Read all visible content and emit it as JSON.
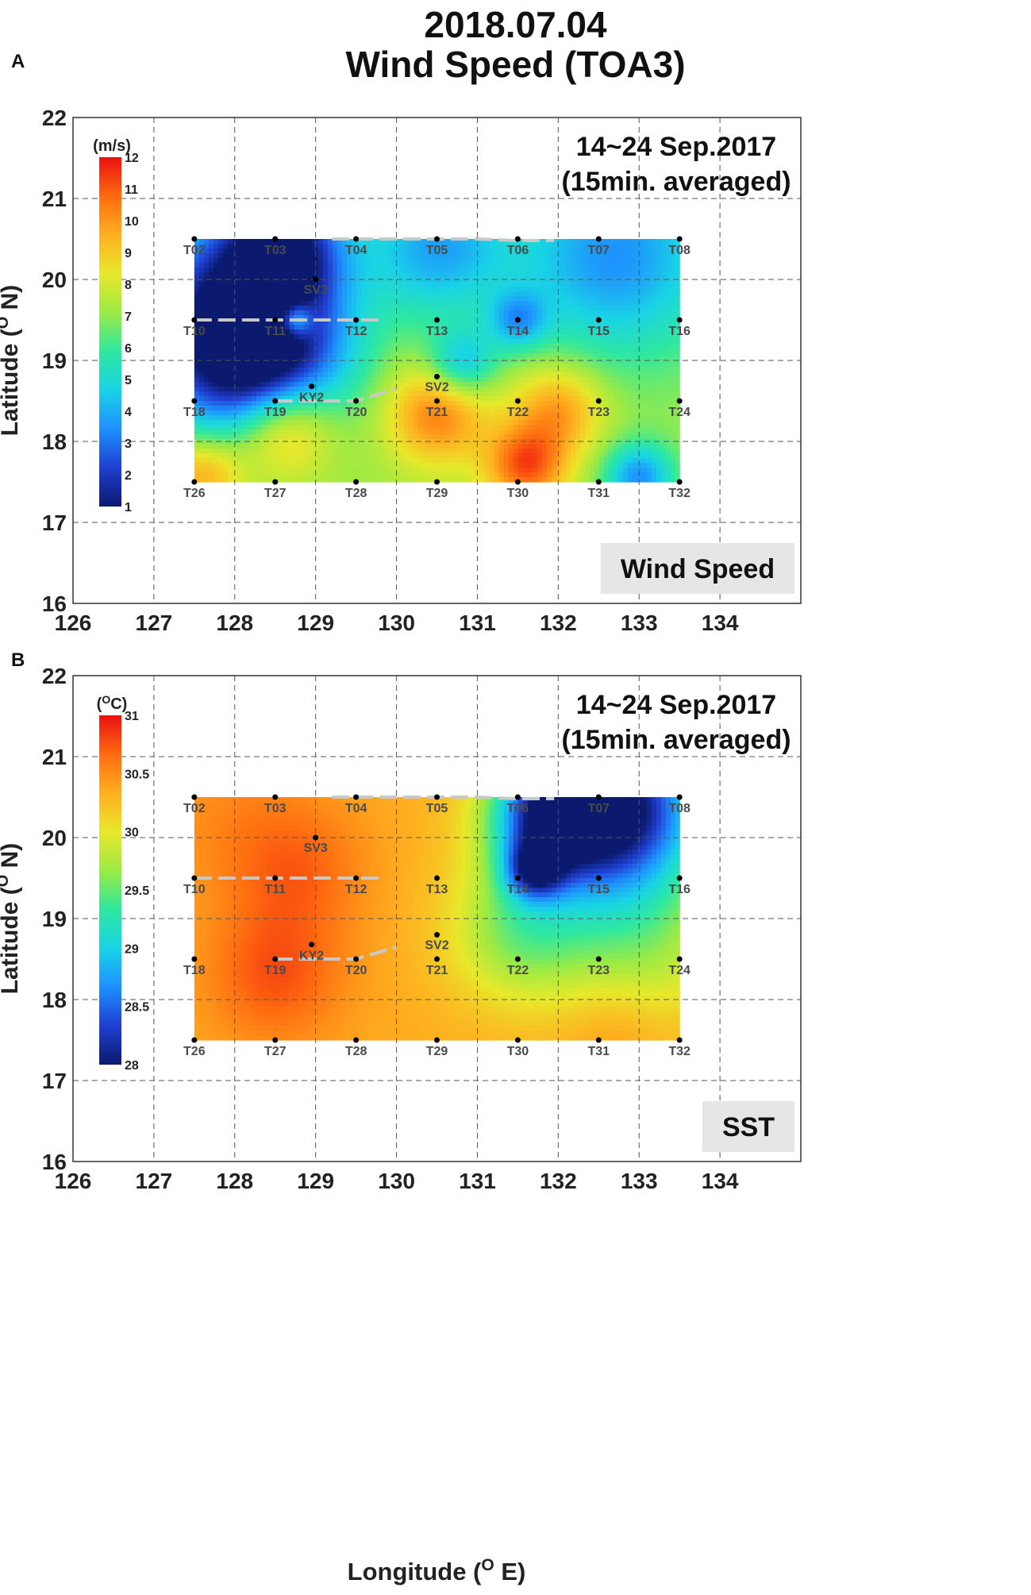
{
  "figure": {
    "title_line1": "2018.07.04",
    "title_line2": "Wind Speed (TOA3)",
    "x_axis_label": "Longitude (",
    "x_axis_sup": "O",
    "x_axis_unit": " E)"
  },
  "chart_data": [
    {
      "type": "heatmap",
      "panel": "A",
      "xlabel": "",
      "ylabel": "Latitude (O N)",
      "xlim": [
        126,
        135
      ],
      "ylim": [
        16,
        22
      ],
      "xticks": [
        126,
        127,
        128,
        129,
        130,
        131,
        132,
        133,
        134
      ],
      "yticks": [
        16,
        17,
        18,
        19,
        20,
        21,
        22
      ],
      "grid": true,
      "annotation": [
        "14~24 Sep.2017",
        "(15min. averaged)"
      ],
      "field_label": "Wind Speed",
      "colorbar": {
        "title": "(m/s)",
        "min": 1,
        "max": 12,
        "ticks": [
          1,
          2,
          3,
          4,
          5,
          6,
          7,
          8,
          9,
          10,
          11,
          12
        ],
        "tick_labels": [
          "1",
          "2",
          "3",
          "4",
          "5",
          "6",
          "7",
          "8",
          "9",
          "10",
          "11",
          "12"
        ],
        "colors": [
          "#0b1a6e",
          "#1f3fd0",
          "#1e90ff",
          "#19d3e6",
          "#2ee8a0",
          "#9bea45",
          "#e8e82a",
          "#ffb020",
          "#ff6a10",
          "#e81010"
        ]
      },
      "field_extent": {
        "lon": [
          127.5,
          133.5
        ],
        "lat": [
          17.5,
          20.5
        ]
      },
      "base_value": 7.2,
      "features": [
        {
          "lon": 128.0,
          "lat": 19.6,
          "value": 2.0,
          "spread": 0.9
        },
        {
          "lon": 128.3,
          "lat": 19.0,
          "value": 2.2,
          "spread": 0.7
        },
        {
          "lon": 128.6,
          "lat": 20.4,
          "value": 2.4,
          "spread": 0.5
        },
        {
          "lon": 130.5,
          "lat": 20.4,
          "value": 4.0,
          "spread": 0.6
        },
        {
          "lon": 132.7,
          "lat": 20.3,
          "value": 3.5,
          "spread": 0.9
        },
        {
          "lon": 130.8,
          "lat": 18.95,
          "value": 4.2,
          "spread": 0.3
        },
        {
          "lon": 128.75,
          "lat": 19.5,
          "value": 11.0,
          "spread": 0.15
        },
        {
          "lon": 128.6,
          "lat": 18.2,
          "value": 11.0,
          "spread": 0.45
        },
        {
          "lon": 130.5,
          "lat": 18.35,
          "value": 10.5,
          "spread": 0.45
        },
        {
          "lon": 131.6,
          "lat": 17.7,
          "value": 11.0,
          "spread": 0.35
        },
        {
          "lon": 132.0,
          "lat": 18.4,
          "value": 10.0,
          "spread": 0.4
        },
        {
          "lon": 133.0,
          "lat": 17.55,
          "value": 3.5,
          "spread": 0.3
        },
        {
          "lon": 131.5,
          "lat": 19.5,
          "value": 4.5,
          "spread": 0.25
        },
        {
          "lon": 127.6,
          "lat": 17.6,
          "value": 10.0,
          "spread": 0.35
        }
      ]
    },
    {
      "type": "heatmap",
      "panel": "B",
      "xlabel": "Longitude (O E)",
      "ylabel": "Latitude (O N)",
      "xlim": [
        126,
        135
      ],
      "ylim": [
        16,
        22
      ],
      "xticks": [
        126,
        127,
        128,
        129,
        130,
        131,
        132,
        133,
        134
      ],
      "yticks": [
        16,
        17,
        18,
        19,
        20,
        21,
        22
      ],
      "grid": true,
      "annotation": [
        "14~24 Sep.2017",
        "(15min. averaged)"
      ],
      "field_label": "SST",
      "colorbar": {
        "title": "(OC)",
        "min": 28,
        "max": 31,
        "ticks": [
          28,
          28.5,
          29,
          29.5,
          30,
          30.5,
          31
        ],
        "tick_labels": [
          "28",
          "28.5",
          "29",
          "29.5",
          "30",
          "30.5",
          "31"
        ],
        "colors": [
          "#0b1a6e",
          "#1f3fd0",
          "#1e90ff",
          "#19d3e6",
          "#2ee8a0",
          "#9bea45",
          "#e8e82a",
          "#ffb020",
          "#ff6a10",
          "#e81010"
        ]
      },
      "field_extent": {
        "lon": [
          127.5,
          133.5
        ],
        "lat": [
          17.5,
          20.5
        ]
      },
      "base_value": 30.35,
      "features": [
        {
          "lon": 128.5,
          "lat": 18.3,
          "value": 30.75,
          "spread": 0.6
        },
        {
          "lon": 128.8,
          "lat": 19.6,
          "value": 30.65,
          "spread": 0.6
        },
        {
          "lon": 128.0,
          "lat": 20.2,
          "value": 30.5,
          "spread": 0.7
        },
        {
          "lon": 132.8,
          "lat": 20.45,
          "value": 28.4,
          "spread": 0.7
        },
        {
          "lon": 131.9,
          "lat": 20.3,
          "value": 28.6,
          "spread": 0.5
        },
        {
          "lon": 131.7,
          "lat": 19.6,
          "value": 29.1,
          "spread": 0.25
        },
        {
          "lon": 132.5,
          "lat": 19.6,
          "value": 29.6,
          "spread": 0.9
        },
        {
          "lon": 131.5,
          "lat": 18.8,
          "value": 29.75,
          "spread": 0.6
        },
        {
          "lon": 133.2,
          "lat": 18.6,
          "value": 30.0,
          "spread": 0.7
        },
        {
          "lon": 132.7,
          "lat": 17.65,
          "value": 30.5,
          "spread": 0.4
        }
      ]
    }
  ],
  "stations": [
    {
      "id": "T02",
      "lon": 127.5,
      "lat": 20.5
    },
    {
      "id": "T03",
      "lon": 128.5,
      "lat": 20.5
    },
    {
      "id": "T04",
      "lon": 129.5,
      "lat": 20.5
    },
    {
      "id": "T05",
      "lon": 130.5,
      "lat": 20.5
    },
    {
      "id": "T06",
      "lon": 131.5,
      "lat": 20.5
    },
    {
      "id": "T07",
      "lon": 132.5,
      "lat": 20.5
    },
    {
      "id": "T08",
      "lon": 133.5,
      "lat": 20.5
    },
    {
      "id": "T10",
      "lon": 127.5,
      "lat": 19.5
    },
    {
      "id": "T11",
      "lon": 128.5,
      "lat": 19.5
    },
    {
      "id": "T12",
      "lon": 129.5,
      "lat": 19.5
    },
    {
      "id": "T13",
      "lon": 130.5,
      "lat": 19.5
    },
    {
      "id": "T14",
      "lon": 131.5,
      "lat": 19.5
    },
    {
      "id": "T15",
      "lon": 132.5,
      "lat": 19.5
    },
    {
      "id": "T16",
      "lon": 133.5,
      "lat": 19.5
    },
    {
      "id": "T18",
      "lon": 127.5,
      "lat": 18.5
    },
    {
      "id": "T19",
      "lon": 128.5,
      "lat": 18.5
    },
    {
      "id": "T20",
      "lon": 129.5,
      "lat": 18.5
    },
    {
      "id": "T21",
      "lon": 130.5,
      "lat": 18.5
    },
    {
      "id": "T22",
      "lon": 131.5,
      "lat": 18.5
    },
    {
      "id": "T23",
      "lon": 132.5,
      "lat": 18.5
    },
    {
      "id": "T24",
      "lon": 133.5,
      "lat": 18.5
    },
    {
      "id": "T26",
      "lon": 127.5,
      "lat": 17.5
    },
    {
      "id": "T27",
      "lon": 128.5,
      "lat": 17.5
    },
    {
      "id": "T28",
      "lon": 129.5,
      "lat": 17.5
    },
    {
      "id": "T29",
      "lon": 130.5,
      "lat": 17.5
    },
    {
      "id": "T30",
      "lon": 131.5,
      "lat": 17.5
    },
    {
      "id": "T31",
      "lon": 132.5,
      "lat": 17.5
    },
    {
      "id": "T32",
      "lon": 133.5,
      "lat": 17.5
    },
    {
      "id": "SV3",
      "lon": 129.0,
      "lat": 20.0
    },
    {
      "id": "KY2",
      "lon": 128.95,
      "lat": 18.68
    },
    {
      "id": "SV2",
      "lon": 130.5,
      "lat": 18.8
    }
  ],
  "tracks": [
    [
      [
        127.5,
        19.5
      ],
      [
        129.8,
        19.5
      ]
    ],
    [
      [
        128.5,
        18.5
      ],
      [
        129.5,
        18.5
      ],
      [
        130.0,
        18.65
      ]
    ],
    [
      [
        129.2,
        20.5
      ],
      [
        131.0,
        20.5
      ],
      [
        131.5,
        20.48
      ],
      [
        131.95,
        20.48
      ]
    ]
  ]
}
